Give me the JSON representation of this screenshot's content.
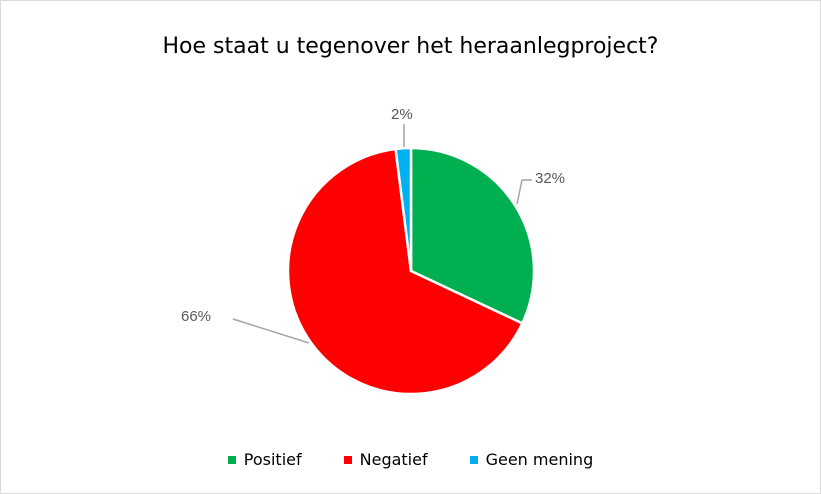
{
  "chart_data": {
    "type": "pie",
    "title": "Hoe staat u tegenover het heraanlegproject?",
    "categories": [
      "Positief",
      "Negatief",
      "Geen mening"
    ],
    "values": [
      32,
      66,
      2
    ],
    "data_labels": [
      "32%",
      "66%",
      "2%"
    ],
    "colors": [
      "#00B050",
      "#FF0000",
      "#00B0F0"
    ],
    "start_angle": "top, clockwise",
    "legend": "bottom"
  }
}
